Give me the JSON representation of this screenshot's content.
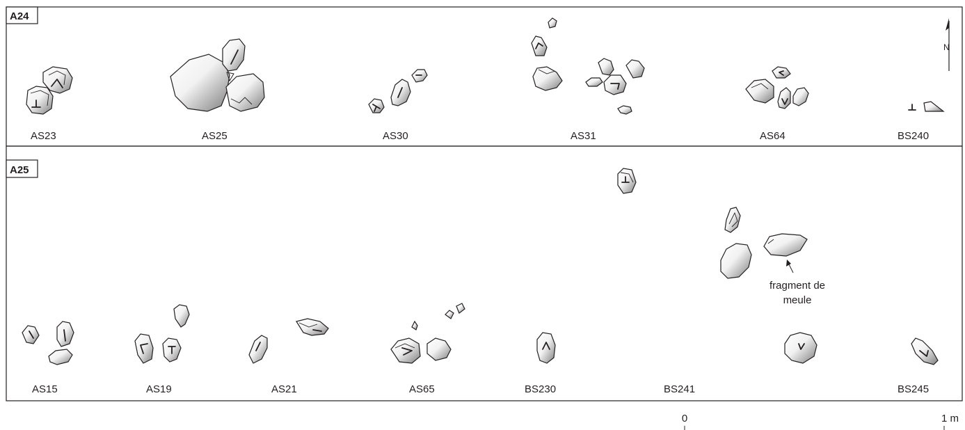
{
  "panels": [
    {
      "tag": "A24",
      "labels": [
        "AS23",
        "AS25",
        "AS30",
        "AS31",
        "AS64",
        "BS240"
      ]
    },
    {
      "tag": "A25",
      "labels": [
        "AS15",
        "AS19",
        "AS21",
        "AS65",
        "BS230",
        "BS241",
        "BS245"
      ]
    }
  ],
  "annotation": {
    "line1": "fragment de",
    "line2": "meule"
  },
  "north": {
    "label": "N"
  },
  "scale": {
    "start": "0",
    "end": "1 m"
  },
  "colors": {
    "ink": "#231f20",
    "stone_light": "#ffffff",
    "stone_dark": "#8a8a8a"
  }
}
